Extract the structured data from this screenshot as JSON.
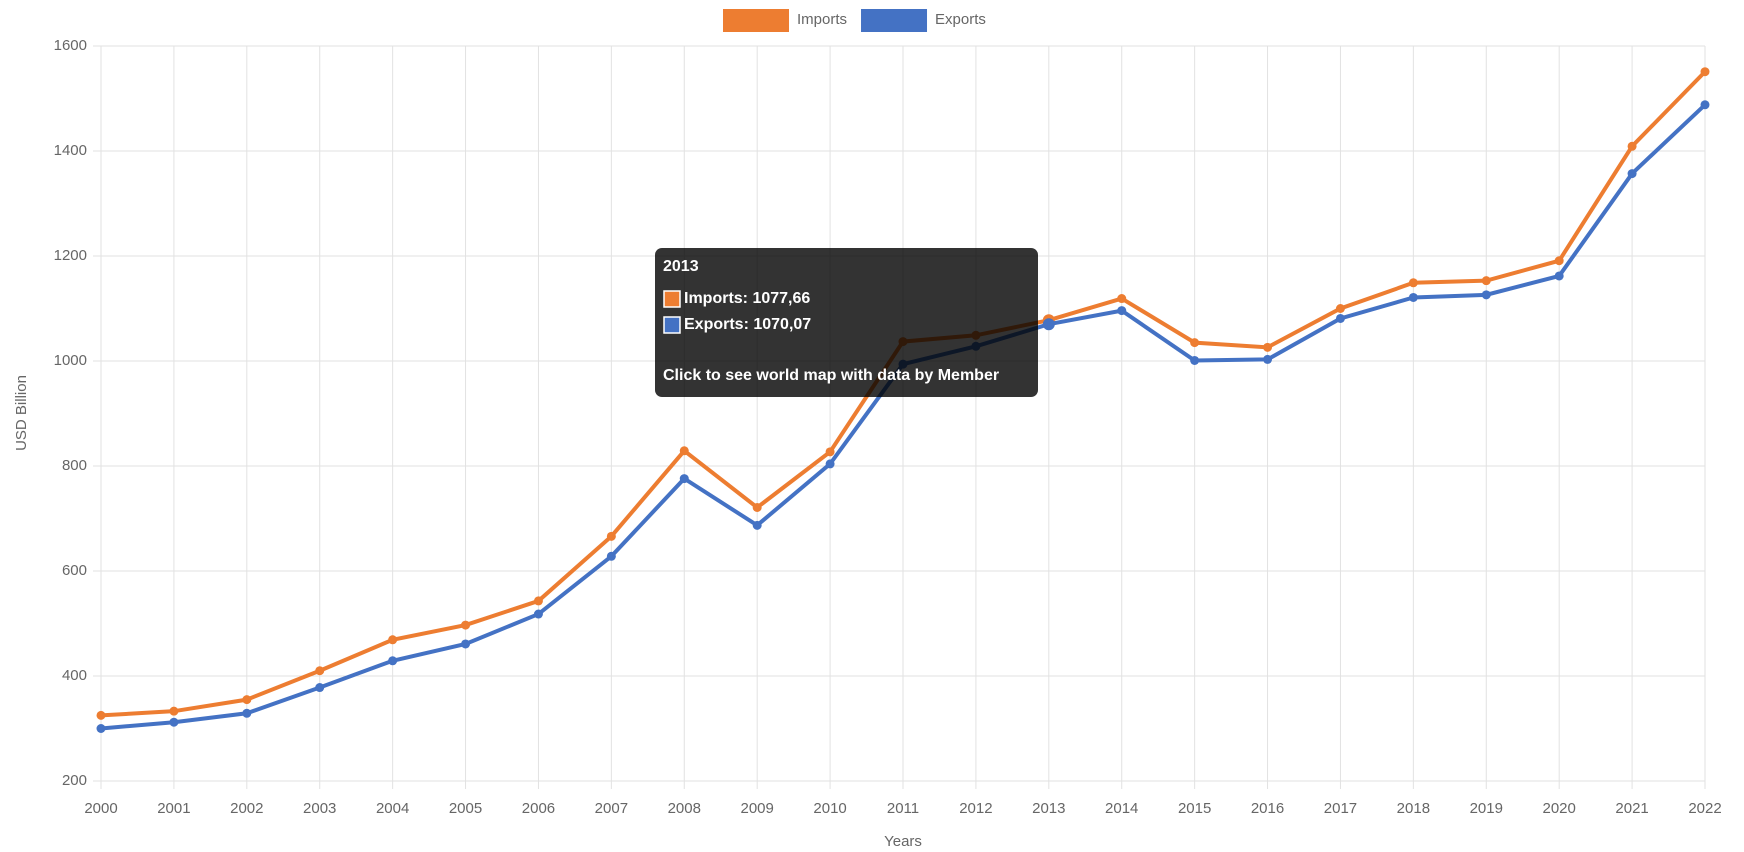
{
  "chart_data": {
    "type": "line",
    "x_label": "Years",
    "y_label": "USD Billion",
    "categories": [
      "2000",
      "2001",
      "2002",
      "2003",
      "2004",
      "2005",
      "2006",
      "2007",
      "2008",
      "2009",
      "2010",
      "2011",
      "2012",
      "2013",
      "2014",
      "2015",
      "2016",
      "2017",
      "2018",
      "2019",
      "2020",
      "2021",
      "2022"
    ],
    "series": [
      {
        "name": "Imports",
        "color": "#ed7d31",
        "values": [
          325,
          333,
          355,
          410,
          469,
          497,
          543,
          666,
          829,
          721,
          827,
          1037,
          1049,
          1077.66,
          1119,
          1035,
          1026,
          1100,
          1149,
          1153,
          1191,
          1409,
          1551
        ]
      },
      {
        "name": "Exports",
        "color": "#4472c4",
        "values": [
          300,
          312,
          329,
          378,
          429,
          461,
          518,
          628,
          776,
          687,
          804,
          994,
          1028,
          1070.07,
          1096,
          1001,
          1003,
          1081,
          1121,
          1126,
          1162,
          1357,
          1488
        ]
      }
    ],
    "ylim": [
      200,
      1600
    ],
    "yticks": [
      200,
      400,
      600,
      800,
      1000,
      1200,
      1400,
      1600
    ],
    "grid": true,
    "legend": "top",
    "tooltip": {
      "index": 13,
      "title": "2013",
      "items": [
        "Imports: 1077,66",
        "Exports: 1070,07"
      ],
      "footer": "Click to see world map with data by Member"
    }
  }
}
